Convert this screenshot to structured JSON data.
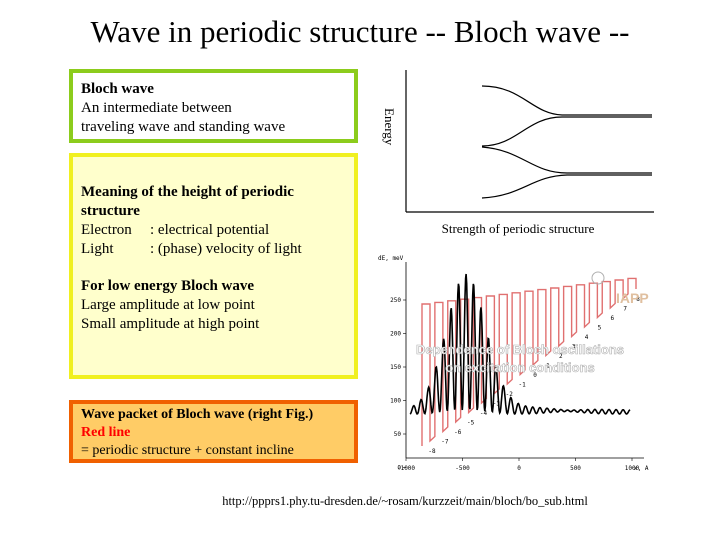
{
  "slide": {
    "title": "Wave in periodic structure -- Bloch wave --",
    "box1": {
      "heading": "Bloch wave",
      "line1": "An intermediate between",
      "line2": "traveling wave and standing wave"
    },
    "box2": {
      "heading1": "Meaning of the height of periodic",
      "heading2": "structure",
      "rows": [
        {
          "key": "Electron",
          "value": ": electrical potential"
        },
        {
          "key": "Light",
          "value": ": (phase) velocity of light"
        }
      ],
      "heading3": "For low energy Bloch wave",
      "line1": "Large amplitude at low point",
      "line2": "Small amplitude at high point"
    },
    "box3": {
      "heading": "Wave packet of Bloch wave (right Fig.)",
      "red": "Red line",
      "line": "= periodic structure + constant incline"
    },
    "diagram": {
      "ylabel": "Energy",
      "xlabel": "Strength of periodic structure"
    },
    "figure": {
      "ylabel": "dE, meV",
      "xlabel": "x, A",
      "yticks": [
        "250",
        "200",
        "150",
        "100",
        "50",
        "0"
      ],
      "xticks": [
        "-1000",
        "-500",
        "0",
        "500",
        "1000"
      ],
      "wells": [
        "-8",
        "-7",
        "-6",
        "-5",
        "-4",
        "-3",
        "-2",
        "-1",
        "0",
        "1",
        "2",
        "3",
        "4",
        "5",
        "6",
        "7",
        "8"
      ],
      "logo": "IAPP",
      "caption1": "Dependence of Bloch oscillations",
      "caption2": "on excitation conditions"
    },
    "url": "http://ppprs1.phy.tu-dresden.de/~rosam/kurzzeit/main/bloch/bo_sub.html"
  }
}
